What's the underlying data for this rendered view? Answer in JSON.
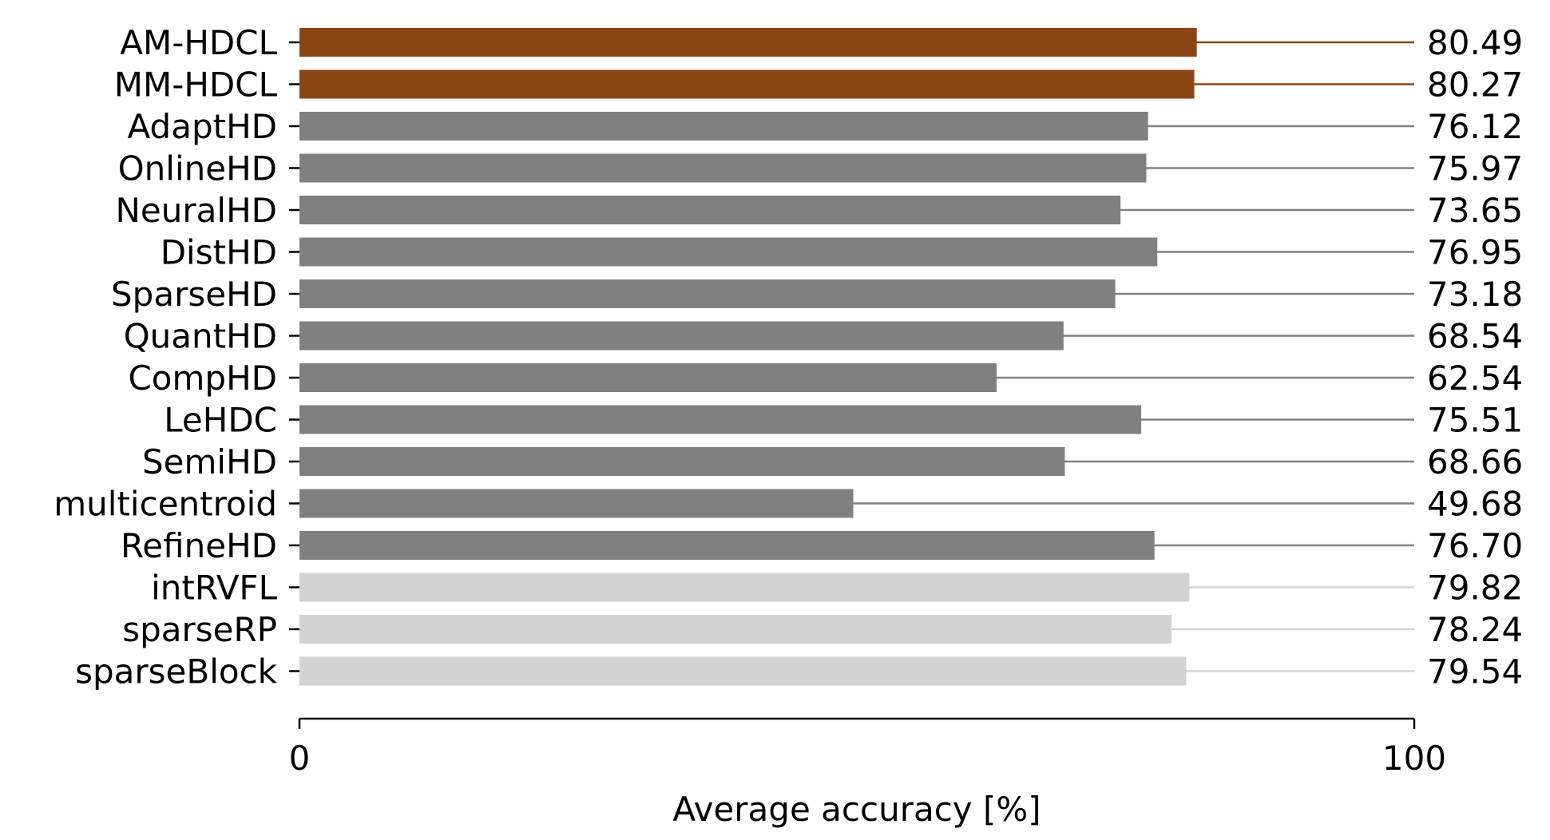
{
  "chart_data": {
    "type": "bar",
    "orientation": "horizontal",
    "categories": [
      "AM-HDCL",
      "MM-HDCL",
      "AdaptHD",
      "OnlineHD",
      "NeuralHD",
      "DistHD",
      "SparseHD",
      "QuantHD",
      "CompHD",
      "LeHDC",
      "SemiHD",
      "multicentroid",
      "RefineHD",
      "intRVFL",
      "sparseRP",
      "sparseBlock"
    ],
    "values": [
      80.49,
      80.27,
      76.12,
      75.97,
      73.65,
      76.95,
      73.18,
      68.54,
      62.54,
      75.51,
      68.66,
      49.68,
      76.7,
      79.82,
      78.24,
      79.54
    ],
    "value_labels": [
      "80.49",
      "80.27",
      "76.12",
      "75.97",
      "73.65",
      "76.95",
      "73.18",
      "68.54",
      "62.54",
      "75.51",
      "68.66",
      "49.68",
      "76.70",
      "79.82",
      "78.24",
      "79.54"
    ],
    "groups": [
      "highlight",
      "highlight",
      "hdc",
      "hdc",
      "hdc",
      "hdc",
      "hdc",
      "hdc",
      "hdc",
      "hdc",
      "hdc",
      "hdc",
      "hdc",
      "baseline",
      "baseline",
      "baseline"
    ],
    "colors": {
      "highlight": "#8B4513",
      "hdc": "#808080",
      "baseline": "#D3D3D3"
    },
    "xlabel": "Average accuracy [%]",
    "ylabel": "",
    "title": "",
    "xlim": [
      0,
      100
    ],
    "xticks": [
      0,
      100
    ],
    "xtick_labels": [
      "0",
      "100"
    ],
    "grid": false,
    "legend": null
  }
}
